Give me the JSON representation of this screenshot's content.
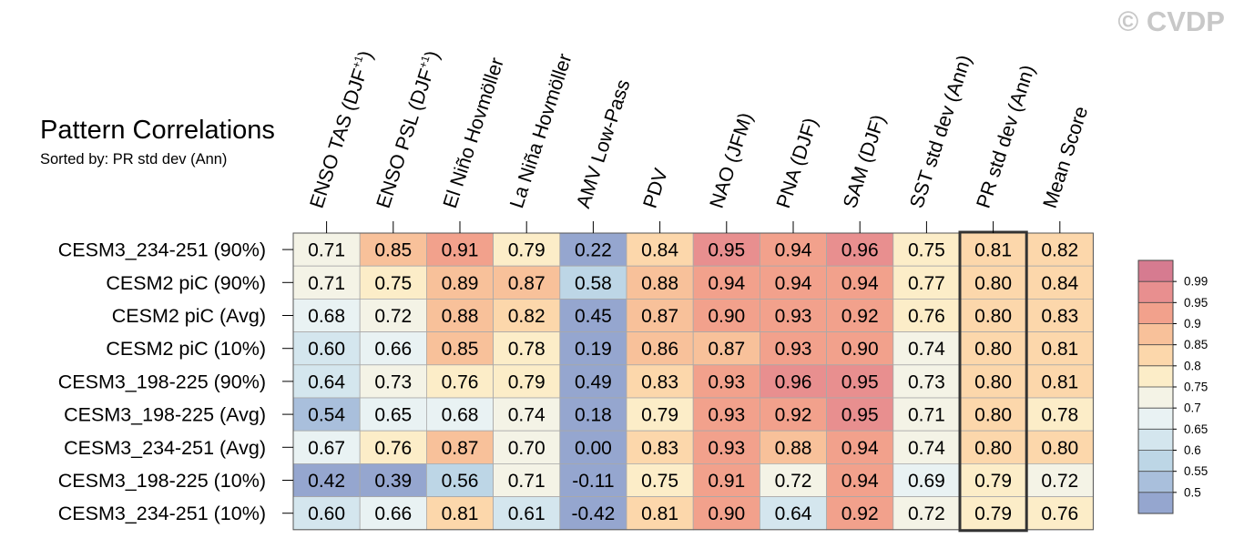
{
  "watermark": "© CVDP",
  "chart_data": {
    "type": "heatmap",
    "title": "Pattern Correlations",
    "subtitle": "Sorted by: PR std dev (Ann)",
    "columns": [
      {
        "name": "ENSO TAS (DJF",
        "sup": "+1",
        "close": ")"
      },
      {
        "name": "ENSO PSL (DJF",
        "sup": "+1",
        "close": ")"
      },
      {
        "name": "El Niño Hovmöller",
        "sup": "",
        "close": ""
      },
      {
        "name": "La Niña Hovmöller",
        "sup": "",
        "close": ""
      },
      {
        "name": "AMV Low-Pass",
        "sup": "",
        "close": ""
      },
      {
        "name": "PDV",
        "sup": "",
        "close": ""
      },
      {
        "name": "NAO (JFM)",
        "sup": "",
        "close": ""
      },
      {
        "name": "PNA (DJF)",
        "sup": "",
        "close": ""
      },
      {
        "name": "SAM (DJF)",
        "sup": "",
        "close": ""
      },
      {
        "name": "SST std dev (Ann)",
        "sup": "",
        "close": ""
      },
      {
        "name": "PR std dev (Ann)",
        "sup": "",
        "close": ""
      },
      {
        "name": "Mean Score",
        "sup": "",
        "close": ""
      }
    ],
    "highlighted_column": 10,
    "rows": [
      "CESM3_234-251 (90%)",
      "CESM2 piC (90%)",
      "CESM2 piC (Avg)",
      "CESM2 piC (10%)",
      "CESM3_198-225 (90%)",
      "CESM3_198-225 (Avg)",
      "CESM3_234-251 (Avg)",
      "CESM3_198-225 (10%)",
      "CESM3_234-251 (10%)"
    ],
    "values": [
      [
        "0.71",
        "0.85",
        "0.91",
        "0.79",
        "0.22",
        "0.84",
        "0.95",
        "0.94",
        "0.96",
        "0.75",
        "0.81",
        "0.82"
      ],
      [
        "0.71",
        "0.75",
        "0.89",
        "0.87",
        "0.58",
        "0.88",
        "0.94",
        "0.94",
        "0.94",
        "0.77",
        "0.80",
        "0.84"
      ],
      [
        "0.68",
        "0.72",
        "0.88",
        "0.82",
        "0.45",
        "0.87",
        "0.90",
        "0.93",
        "0.92",
        "0.76",
        "0.80",
        "0.83"
      ],
      [
        "0.60",
        "0.66",
        "0.85",
        "0.78",
        "0.19",
        "0.86",
        "0.87",
        "0.93",
        "0.90",
        "0.74",
        "0.80",
        "0.81"
      ],
      [
        "0.64",
        "0.73",
        "0.76",
        "0.79",
        "0.49",
        "0.83",
        "0.93",
        "0.96",
        "0.95",
        "0.73",
        "0.80",
        "0.81"
      ],
      [
        "0.54",
        "0.65",
        "0.68",
        "0.74",
        "0.18",
        "0.79",
        "0.93",
        "0.92",
        "0.95",
        "0.71",
        "0.80",
        "0.78"
      ],
      [
        "0.67",
        "0.76",
        "0.87",
        "0.70",
        "0.00",
        "0.83",
        "0.93",
        "0.88",
        "0.94",
        "0.74",
        "0.80",
        "0.80"
      ],
      [
        "0.42",
        "0.39",
        "0.56",
        "0.71",
        "-0.11",
        "0.75",
        "0.91",
        "0.72",
        "0.94",
        "0.69",
        "0.79",
        "0.72"
      ],
      [
        "0.60",
        "0.66",
        "0.81",
        "0.61",
        "-0.42",
        "0.81",
        "0.90",
        "0.64",
        "0.92",
        "0.72",
        "0.79",
        "0.76"
      ]
    ],
    "colorbar": {
      "labels": [
        "0.99",
        "0.95",
        "0.9",
        "0.85",
        "0.8",
        "0.75",
        "0.7",
        "0.65",
        "0.6",
        "0.55",
        "0.5"
      ],
      "boundaries": [
        0.5,
        0.55,
        0.6,
        0.65,
        0.7,
        0.75,
        0.8,
        0.85,
        0.9,
        0.95,
        0.99
      ],
      "colors": [
        "#95a6cf",
        "#a9bfdc",
        "#bdd6e6",
        "#d4e6ee",
        "#e9f2f3",
        "#f4f3e6",
        "#fcedc8",
        "#fcd7ab",
        "#f8c19a",
        "#f2a18c",
        "#e88f8f",
        "#d67b90"
      ]
    }
  }
}
